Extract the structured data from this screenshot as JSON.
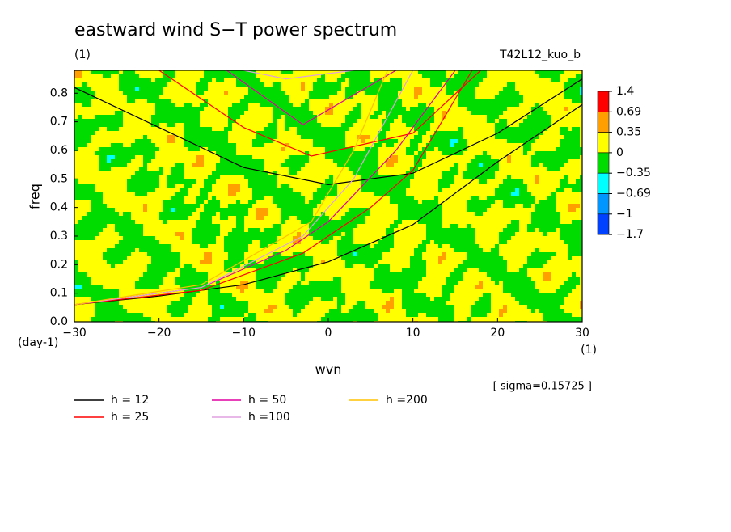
{
  "chart_data": {
    "type": "contour",
    "title": "eastward wind S−T power spectrum",
    "subtitle": "(1)",
    "run_label": "T42L12_kuo_b",
    "x_label": "wvn",
    "x_unit": "(1)",
    "y_label": "freq",
    "y_unit": "(day-1)",
    "note": "[ sigma=0.15725 ]",
    "xlim": [
      -30,
      30
    ],
    "xticks": [
      {
        "value": -30,
        "label": "−30"
      },
      {
        "value": -20,
        "label": "−20"
      },
      {
        "value": -10,
        "label": "−10"
      },
      0,
      10,
      20,
      30
    ],
    "ylim": [
      0,
      0.88
    ],
    "yticks": [
      {
        "value": 0,
        "label": "0.0"
      },
      0.1,
      0.2,
      0.3,
      0.4,
      0.5,
      0.6,
      0.7,
      0.8
    ],
    "levels": [
      {
        "value": 1.4,
        "label": "1.4"
      },
      {
        "value": 0.69,
        "label": "0.69"
      },
      {
        "value": 0.35,
        "label": "0.35"
      },
      {
        "value": 0,
        "label": "0"
      },
      {
        "value": -0.35,
        "label": "−0.35"
      },
      {
        "value": -0.69,
        "label": "−0.69"
      },
      {
        "value": -1,
        "label": "−1"
      },
      {
        "value": -1.7,
        "label": "−1.7"
      }
    ],
    "level_colors": [
      "#ff0000",
      "#ffa000",
      "#ffff00",
      "#00dc00",
      "#00ffff",
      "#0096ff",
      "#0040ff"
    ],
    "series": [
      {
        "name": "h = 12",
        "color": "#000000",
        "branches": [
          {
            "x": [
              -30,
              -20,
              -10,
              0,
              10,
              20,
              30
            ],
            "values": [
              0.06,
              0.09,
              0.13,
              0.21,
              0.34,
              0.56,
              0.76
            ]
          },
          {
            "x": [
              -30,
              -20,
              -10,
              0,
              10,
              20,
              30
            ],
            "values": [
              0.82,
              0.68,
              0.54,
              0.48,
              0.52,
              0.66,
              0.85
            ]
          }
        ]
      },
      {
        "name": "h = 25",
        "color": "#ff0000",
        "branches": [
          {
            "x": [
              -30,
              -15,
              -3,
              5,
              10,
              17
            ],
            "values": [
              0.06,
              0.11,
              0.24,
              0.4,
              0.53,
              0.88
            ]
          },
          {
            "x": [
              -20,
              -10,
              -2,
              10,
              18
            ],
            "values": [
              0.88,
              0.68,
              0.58,
              0.66,
              0.88
            ]
          }
        ]
      },
      {
        "name": "h = 50",
        "color": "#e000a0",
        "branches": [
          {
            "x": [
              -30,
              -15,
              -5,
              0,
              8,
              15
            ],
            "values": [
              0.06,
              0.12,
              0.25,
              0.35,
              0.6,
              0.88
            ]
          },
          {
            "x": [
              -12,
              -3,
              8
            ],
            "values": [
              0.88,
              0.69,
              0.88
            ]
          }
        ]
      },
      {
        "name": "h =100",
        "color": "#e0a0e0",
        "branches": [
          {
            "x": [
              -30,
              -15,
              -3,
              3,
              10
            ],
            "values": [
              0.06,
              0.12,
              0.3,
              0.5,
              0.88
            ]
          },
          {
            "x": [
              -10,
              -5,
              3
            ],
            "values": [
              0.88,
              0.85,
              0.88
            ]
          }
        ]
      },
      {
        "name": "h =200",
        "color": "#ffc000",
        "branches": [
          {
            "x": [
              -30,
              -15,
              -2,
              3,
              7
            ],
            "values": [
              0.06,
              0.13,
              0.35,
              0.6,
              0.88
            ]
          }
        ]
      }
    ]
  }
}
